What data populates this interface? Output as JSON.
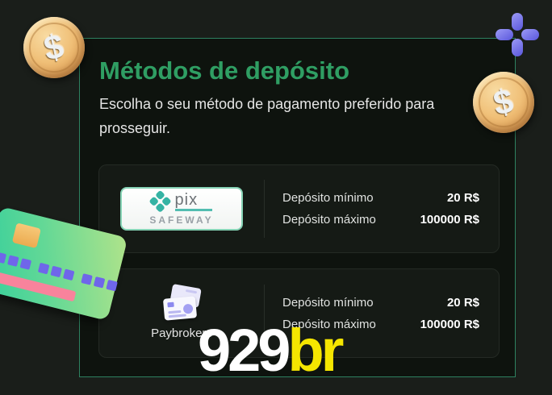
{
  "header": {
    "title": "Métodos de depósito",
    "subtitle": "Escolha o seu método de pagamento preferido para prosseguir."
  },
  "methods": [
    {
      "name": "Pix Safeway",
      "logo_primary": "pix",
      "logo_secondary": "SAFEWAY",
      "deposit_min_label": "Depósito mínimo",
      "deposit_min_value": "20 R$",
      "deposit_max_label": "Depósito máximo",
      "deposit_max_value": "100000 R$"
    },
    {
      "name": "Paybrokers",
      "label": "Paybrokers",
      "deposit_min_label": "Depósito mínimo",
      "deposit_min_value": "20 R$",
      "deposit_max_label": "Depósito máximo",
      "deposit_max_value": "100000 R$"
    }
  ],
  "brand_logo": {
    "white_part": "929",
    "yellow_part": "br"
  },
  "decor": {
    "coin_symbol": "$"
  },
  "colors": {
    "title_green": "#2f9e63",
    "panel_border_green": "#2e8160",
    "logo_yellow": "#f5e600",
    "pix_teal": "#35b3a4",
    "plus_purple": "#6b66e8",
    "card_pink_stripe": "#f8839c"
  }
}
